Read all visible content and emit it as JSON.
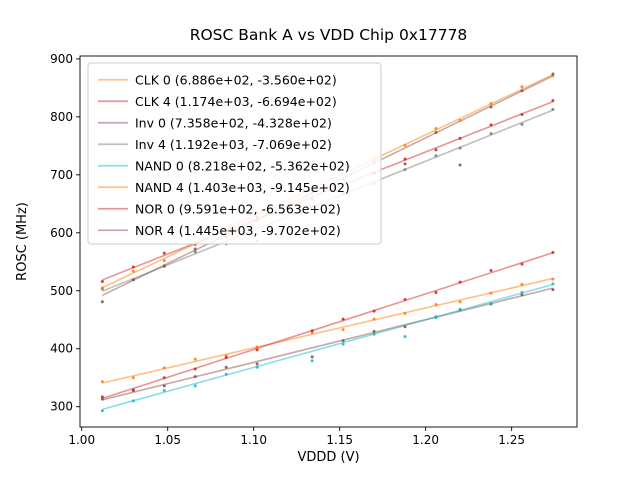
{
  "chart_data": {
    "type": "scatter",
    "title": "ROSC Bank A vs VDD Chip 0x17778",
    "xlabel": "VDDD (V)",
    "ylabel": "ROSC (MHz)",
    "xlim": [
      0.999,
      1.288
    ],
    "ylim": [
      265,
      905
    ],
    "grid": false,
    "legend_position": "upper left",
    "xticks": {
      "values": [
        1.0,
        1.05,
        1.1,
        1.15,
        1.2,
        1.25
      ],
      "labels": [
        "1.00",
        "1.05",
        "1.10",
        "1.15",
        "1.20",
        "1.25"
      ]
    },
    "yticks": {
      "values": [
        300,
        400,
        500,
        600,
        700,
        800,
        900
      ],
      "labels": [
        "300",
        "400",
        "500",
        "600",
        "700",
        "800",
        "900"
      ]
    },
    "series": [
      {
        "name": "CLK 0",
        "label": "CLK 0 (6.886e+02, -3.560e+02)",
        "color": "#ff7f0e",
        "fit": {
          "slope": 688.6,
          "intercept": -356.0
        },
        "line_x": [
          1.012,
          1.274
        ],
        "points": [
          [
            1.012,
            343
          ],
          [
            1.03,
            350
          ],
          [
            1.048,
            367
          ],
          [
            1.066,
            382
          ],
          [
            1.084,
            388
          ],
          [
            1.102,
            403
          ],
          [
            1.134,
            428
          ],
          [
            1.152,
            433
          ],
          [
            1.17,
            451
          ],
          [
            1.188,
            461
          ],
          [
            1.206,
            476
          ],
          [
            1.22,
            481
          ],
          [
            1.238,
            496
          ],
          [
            1.256,
            511
          ],
          [
            1.274,
            520
          ]
        ]
      },
      {
        "name": "CLK 4",
        "label": "CLK 4 (1.174e+03, -6.694e+02)",
        "color": "#d62728",
        "fit": {
          "slope": 1174.0,
          "intercept": -669.4
        },
        "line_x": [
          1.012,
          1.274
        ],
        "points": [
          [
            1.012,
            516
          ],
          [
            1.03,
            541
          ],
          [
            1.048,
            565
          ],
          [
            1.066,
            580
          ],
          [
            1.084,
            603
          ],
          [
            1.102,
            627
          ],
          [
            1.134,
            658
          ],
          [
            1.152,
            684
          ],
          [
            1.17,
            703
          ],
          [
            1.188,
            727
          ],
          [
            1.206,
            743
          ],
          [
            1.22,
            763
          ],
          [
            1.238,
            786
          ],
          [
            1.256,
            804
          ],
          [
            1.274,
            828
          ]
        ]
      },
      {
        "name": "Inv 0",
        "label": "Inv 0 (7.358e+02, -4.328e+02)",
        "color": "#8c564b",
        "fit": {
          "slope": 735.8,
          "intercept": -432.8
        },
        "line_x": [
          1.012,
          1.274
        ],
        "points": [
          [
            1.012,
            313
          ],
          [
            1.03,
            329
          ],
          [
            1.048,
            336
          ],
          [
            1.066,
            352
          ],
          [
            1.084,
            368
          ],
          [
            1.102,
            374
          ],
          [
            1.134,
            386
          ],
          [
            1.152,
            414
          ],
          [
            1.17,
            430
          ],
          [
            1.188,
            438
          ],
          [
            1.206,
            455
          ],
          [
            1.22,
            467
          ],
          [
            1.238,
            477
          ],
          [
            1.256,
            493
          ],
          [
            1.274,
            502
          ]
        ]
      },
      {
        "name": "Inv 4",
        "label": "Inv 4 (1.192e+03, -7.069e+02)",
        "color": "#7f7f7f",
        "fit": {
          "slope": 1192.0,
          "intercept": -706.9
        },
        "line_x": [
          1.012,
          1.274
        ],
        "points": [
          [
            1.012,
            503
          ],
          [
            1.03,
            519
          ],
          [
            1.048,
            542
          ],
          [
            1.066,
            567
          ],
          [
            1.084,
            581
          ],
          [
            1.102,
            586
          ],
          [
            1.134,
            644
          ],
          [
            1.152,
            668
          ],
          [
            1.17,
            685
          ],
          [
            1.188,
            709
          ],
          [
            1.206,
            733
          ],
          [
            1.22,
            746
          ],
          [
            1.238,
            771
          ],
          [
            1.256,
            787
          ],
          [
            1.274,
            813
          ]
        ]
      },
      {
        "name": "NAND 0",
        "label": "NAND 0 (8.218e+02, -5.362e+02)",
        "color": "#17becf",
        "fit": {
          "slope": 821.8,
          "intercept": -536.2
        },
        "line_x": [
          1.012,
          1.274
        ],
        "points": [
          [
            1.012,
            293
          ],
          [
            1.03,
            310
          ],
          [
            1.048,
            328
          ],
          [
            1.066,
            336
          ],
          [
            1.084,
            356
          ],
          [
            1.102,
            368
          ],
          [
            1.134,
            379
          ],
          [
            1.152,
            408
          ],
          [
            1.17,
            425
          ],
          [
            1.188,
            421
          ],
          [
            1.206,
            454
          ],
          [
            1.22,
            468
          ],
          [
            1.238,
            478
          ],
          [
            1.256,
            497
          ],
          [
            1.274,
            512
          ]
        ]
      },
      {
        "name": "NAND 4",
        "label": "NAND 4 (1.403e+03, -9.145e+02)",
        "color": "#ff7f0e",
        "fit": {
          "slope": 1403.0,
          "intercept": -914.5
        },
        "line_x": [
          1.012,
          1.274
        ],
        "points": [
          [
            1.012,
            505
          ],
          [
            1.03,
            534
          ],
          [
            1.048,
            552
          ],
          [
            1.066,
            582
          ],
          [
            1.084,
            605
          ],
          [
            1.102,
            634
          ],
          [
            1.134,
            674
          ],
          [
            1.152,
            702
          ],
          [
            1.17,
            729
          ],
          [
            1.188,
            751
          ],
          [
            1.206,
            780
          ],
          [
            1.22,
            794
          ],
          [
            1.238,
            823
          ],
          [
            1.256,
            852
          ],
          [
            1.274,
            871
          ]
        ]
      },
      {
        "name": "NOR 0",
        "label": "NOR 0 (9.591e+02, -6.563e+02)",
        "color": "#d62728",
        "fit": {
          "slope": 959.1,
          "intercept": -656.3
        },
        "line_x": [
          1.012,
          1.274
        ],
        "points": [
          [
            1.012,
            317
          ],
          [
            1.03,
            328
          ],
          [
            1.048,
            350
          ],
          [
            1.066,
            365
          ],
          [
            1.084,
            385
          ],
          [
            1.102,
            398
          ],
          [
            1.134,
            431
          ],
          [
            1.152,
            451
          ],
          [
            1.17,
            465
          ],
          [
            1.188,
            485
          ],
          [
            1.206,
            497
          ],
          [
            1.22,
            515
          ],
          [
            1.238,
            535
          ],
          [
            1.256,
            546
          ],
          [
            1.274,
            566
          ]
        ]
      },
      {
        "name": "NOR 4",
        "label": "NOR 4 (1.445e+03, -9.702e+02)",
        "color": "#8c564b",
        "fit": {
          "slope": 1445.0,
          "intercept": -970.2
        },
        "line_x": [
          1.012,
          1.274
        ],
        "points": [
          [
            1.012,
            481
          ],
          [
            1.03,
            519
          ],
          [
            1.048,
            543
          ],
          [
            1.066,
            572
          ],
          [
            1.084,
            593
          ],
          [
            1.102,
            622
          ],
          [
            1.134,
            670
          ],
          [
            1.152,
            693
          ],
          [
            1.17,
            722
          ],
          [
            1.188,
            719
          ],
          [
            1.206,
            773
          ],
          [
            1.22,
            717
          ],
          [
            1.238,
            817
          ],
          [
            1.256,
            845
          ],
          [
            1.274,
            874
          ]
        ]
      }
    ]
  }
}
